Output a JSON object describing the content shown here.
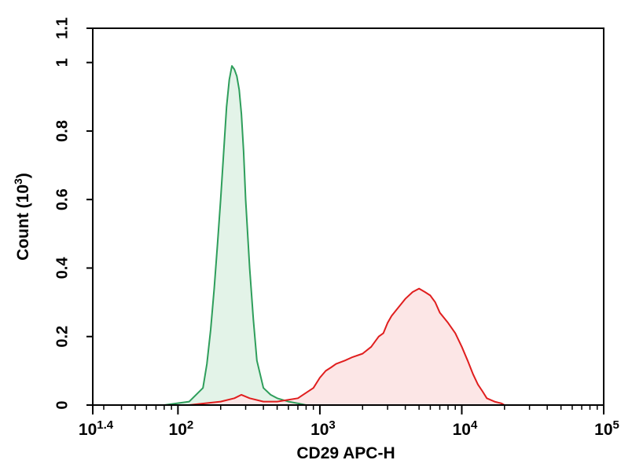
{
  "chart_data": {
    "type": "area",
    "title": "",
    "xlabel": "CD29 APC-H",
    "ylabel": "Count (10^3)",
    "x_scale": "log",
    "xlim": [
      25.1,
      100000
    ],
    "ylim": [
      0,
      1.1
    ],
    "grid": false,
    "legend": "none",
    "x_ticks": [
      {
        "value": 25.1,
        "base": "10",
        "exp": "1.4"
      },
      {
        "value": 100,
        "base": "10",
        "exp": "2"
      },
      {
        "value": 1000,
        "base": "10",
        "exp": "3"
      },
      {
        "value": 10000,
        "base": "10",
        "exp": "4"
      },
      {
        "value": 100000,
        "base": "10",
        "exp": "5"
      }
    ],
    "y_ticks": [
      "0",
      "0.2",
      "0.4",
      "0.6",
      "0.8",
      "1",
      "1.1"
    ],
    "y_label_parts": {
      "main": "Count (10",
      "sup": "3",
      "end": ")"
    },
    "series": [
      {
        "color": "#2e9e5b",
        "fill": "#e3f3e8",
        "x": [
          80,
          120,
          150,
          160,
          170,
          180,
          190,
          200,
          210,
          220,
          230,
          240,
          250,
          260,
          270,
          280,
          290,
          300,
          320,
          340,
          360,
          400,
          450,
          500,
          600,
          700,
          800
        ],
        "y": [
          0.0,
          0.01,
          0.05,
          0.12,
          0.22,
          0.34,
          0.47,
          0.6,
          0.74,
          0.87,
          0.95,
          0.99,
          0.98,
          0.96,
          0.92,
          0.85,
          0.74,
          0.6,
          0.4,
          0.25,
          0.13,
          0.05,
          0.03,
          0.02,
          0.01,
          0.005,
          0.0
        ]
      },
      {
        "color": "#e01e1e",
        "fill": "#fce6e6",
        "x": [
          120,
          200,
          250,
          280,
          320,
          400,
          500,
          700,
          900,
          1000,
          1100,
          1200,
          1300,
          1500,
          1700,
          2000,
          2300,
          2600,
          2800,
          3000,
          3200,
          3500,
          4000,
          4500,
          5000,
          5500,
          6000,
          6500,
          7000,
          8000,
          9000,
          10000,
          11000,
          12000,
          13000,
          14000,
          15000,
          17000,
          19000,
          20000
        ],
        "y": [
          0.0,
          0.01,
          0.02,
          0.03,
          0.02,
          0.01,
          0.01,
          0.02,
          0.05,
          0.08,
          0.1,
          0.11,
          0.12,
          0.13,
          0.14,
          0.15,
          0.17,
          0.2,
          0.21,
          0.24,
          0.26,
          0.28,
          0.31,
          0.33,
          0.34,
          0.33,
          0.32,
          0.3,
          0.27,
          0.24,
          0.21,
          0.17,
          0.13,
          0.09,
          0.06,
          0.04,
          0.02,
          0.01,
          0.005,
          0.0
        ]
      }
    ]
  }
}
